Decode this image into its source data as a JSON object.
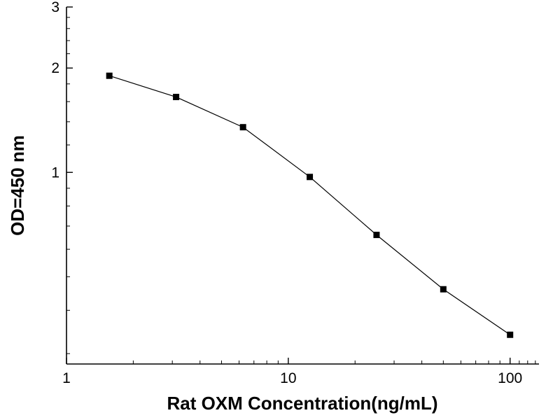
{
  "chart_data": {
    "type": "line",
    "title": "",
    "xlabel": "Rat OXM Concentration(ng/mL)",
    "ylabel": "OD=450 nm",
    "x_scale": "log",
    "y_scale": "log",
    "xlim": [
      1,
      135
    ],
    "ylim": [
      0.28,
      3
    ],
    "x_ticks": [
      1,
      10,
      100
    ],
    "y_ticks": [
      1,
      2,
      3
    ],
    "x_minor_ticks": [
      2,
      3,
      4,
      5,
      6,
      7,
      8,
      9,
      20,
      30,
      40,
      50,
      60,
      70,
      80,
      90,
      110,
      120,
      130
    ],
    "y_minor_ticks": [
      0.3,
      0.4,
      0.5,
      0.6,
      0.7,
      0.8,
      0.9,
      1.2,
      1.4,
      1.6,
      1.8,
      2.2,
      2.4,
      2.6,
      2.8
    ],
    "grid": false,
    "legend": "none",
    "series": [
      {
        "name": "standard_curve",
        "marker": "square",
        "color": "#000000",
        "x": [
          1.56,
          3.12,
          6.25,
          12.5,
          25,
          50,
          100
        ],
        "y": [
          1.9,
          1.65,
          1.35,
          0.97,
          0.66,
          0.46,
          0.34
        ]
      }
    ]
  }
}
